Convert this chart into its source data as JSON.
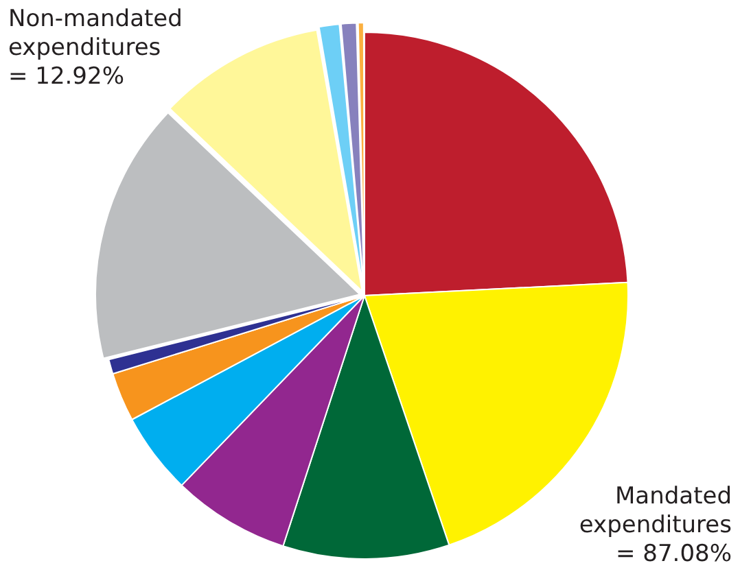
{
  "chart_data": {
    "type": "pie",
    "categories": [
      null,
      null,
      null,
      null,
      null,
      null,
      null,
      null,
      null,
      null,
      null,
      null
    ],
    "values": [
      24.2,
      20.6,
      10.2,
      7.2,
      5.0,
      3.0,
      0.9,
      15.98,
      10.2,
      1.3,
      1.0,
      0.42
    ],
    "colors": [
      "#be1e2d",
      "#fff200",
      "#006838",
      "#92278f",
      "#00aeef",
      "#f7941d",
      "#2e3192",
      "#bcbec0",
      "#fff799",
      "#6dcff6",
      "#8781bd",
      "#fbb040"
    ],
    "annotations": [
      "Non-mandated expenditures = 12.92%",
      "Mandated expenditures = 87.08%"
    ],
    "legend": false
  }
}
